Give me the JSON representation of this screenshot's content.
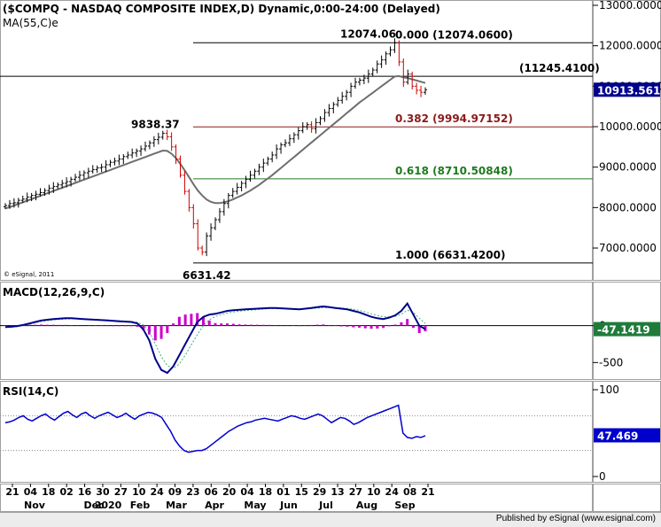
{
  "chart_data": [
    {
      "type": "candlestick",
      "title": "($COMPQ - NASDAQ COMPOSITE INDEX,D) Dynamic,0:00-24:00 (Delayed)",
      "indicator_label": "MA(55,C)e",
      "copyright": "© eSignal, 2011",
      "ylim": [
        6300,
        13000
      ],
      "y_ticks": [
        "13000.0000",
        "12000.0000",
        "11000.0000",
        "10000.0000",
        "9000.0000",
        "8000.0000",
        "7000.0000"
      ],
      "last_price": "10913.5618",
      "fibonacci": [
        {
          "level": "0.000",
          "value": "(12074.0600)",
          "price": 12074.06,
          "color": "#000000"
        },
        {
          "level": "0.382",
          "value": "(9994.97152)",
          "price": 9994.97,
          "color": "#8b1a1a"
        },
        {
          "level": "0.618",
          "value": "(8710.50848)",
          "price": 8710.51,
          "color": "#1f7a1f"
        },
        {
          "level": "1.000",
          "value": "(6631.4200)",
          "price": 6631.42,
          "color": "#000000"
        }
      ],
      "horizontal_line": {
        "label": "(11245.4100)",
        "price": 11245.41
      },
      "annotations": [
        {
          "text": "12074.06",
          "price": 12074.06
        },
        {
          "text": "9838.37",
          "price": 9838.37
        },
        {
          "text": "6631.42",
          "price": 6631.42
        }
      ],
      "closes": [
        8050,
        8100,
        8120,
        8180,
        8210,
        8260,
        8300,
        8330,
        8370,
        8420,
        8480,
        8520,
        8560,
        8600,
        8640,
        8700,
        8750,
        8800,
        8860,
        8900,
        8940,
        8980,
        9000,
        9060,
        9120,
        9150,
        9200,
        9260,
        9300,
        9350,
        9400,
        9450,
        9520,
        9600,
        9680,
        9740,
        9838,
        9750,
        9500,
        9200,
        8800,
        8400,
        8000,
        7600,
        7000,
        6900,
        7300,
        7500,
        7700,
        7900,
        8100,
        8300,
        8400,
        8500,
        8600,
        8700,
        8800,
        8900,
        9000,
        9100,
        9200,
        9300,
        9450,
        9550,
        9600,
        9700,
        9800,
        9900,
        10000,
        10050,
        9950,
        10100,
        10200,
        10350,
        10450,
        10550,
        10650,
        10750,
        10850,
        11000,
        11100,
        11150,
        11200,
        11300,
        11400,
        11550,
        11650,
        11800,
        11900,
        12074,
        11600,
        11100,
        11300,
        11000,
        10900,
        10850,
        10913
      ],
      "ma55": [
        7980,
        8010,
        8050,
        8090,
        8130,
        8170,
        8210,
        8250,
        8290,
        8330,
        8370,
        8410,
        8450,
        8490,
        8530,
        8570,
        8610,
        8650,
        8690,
        8730,
        8770,
        8810,
        8850,
        8890,
        8930,
        8970,
        9010,
        9050,
        9090,
        9130,
        9170,
        9210,
        9250,
        9290,
        9330,
        9370,
        9410,
        9400,
        9330,
        9220,
        9080,
        8920,
        8750,
        8580,
        8420,
        8300,
        8200,
        8140,
        8110,
        8110,
        8130,
        8160,
        8200,
        8250,
        8300,
        8360,
        8420,
        8490,
        8560,
        8640,
        8720,
        8800,
        8890,
        8980,
        9070,
        9160,
        9250,
        9340,
        9430,
        9520,
        9610,
        9700,
        9790,
        9880,
        9970,
        10060,
        10150,
        10240,
        10330,
        10420,
        10510,
        10600,
        10680,
        10760,
        10840,
        10920,
        11000,
        11080,
        11160,
        11240,
        11250,
        11220,
        11200,
        11170,
        11140,
        11110,
        11080
      ]
    },
    {
      "type": "line",
      "title": "MACD(12,26,9,C)",
      "ylim": [
        -700,
        500
      ],
      "y_ticks": [
        "0",
        "-500"
      ],
      "last_value": "-47.1419",
      "macd": [
        -20,
        -15,
        -5,
        10,
        30,
        50,
        70,
        80,
        90,
        95,
        100,
        100,
        95,
        90,
        85,
        80,
        75,
        70,
        65,
        60,
        55,
        50,
        30,
        -50,
        -200,
        -450,
        -600,
        -640,
        -550,
        -400,
        -250,
        -100,
        50,
        120,
        150,
        160,
        180,
        200,
        210,
        215,
        220,
        225,
        230,
        235,
        240,
        240,
        235,
        230,
        225,
        220,
        230,
        240,
        250,
        260,
        250,
        240,
        230,
        220,
        200,
        180,
        150,
        120,
        100,
        90,
        110,
        140,
        200,
        300,
        150,
        0,
        -47
      ],
      "signal": [
        -25,
        -20,
        -12,
        0,
        18,
        38,
        55,
        68,
        78,
        85,
        90,
        92,
        92,
        90,
        87,
        84,
        80,
        76,
        72,
        67,
        62,
        57,
        45,
        10,
        -80,
        -250,
        -420,
        -540,
        -580,
        -520,
        -400,
        -260,
        -120,
        0,
        80,
        125,
        150,
        170,
        185,
        198,
        205,
        212,
        218,
        224,
        230,
        233,
        233,
        232,
        229,
        226,
        227,
        231,
        237,
        244,
        246,
        244,
        240,
        234,
        222,
        207,
        186,
        162,
        139,
        121,
        118,
        126,
        155,
        210,
        180,
        100,
        30
      ],
      "histogram": [
        5,
        5,
        7,
        10,
        12,
        12,
        15,
        12,
        12,
        10,
        10,
        8,
        3,
        0,
        -2,
        -4,
        -5,
        -6,
        -7,
        -7,
        -7,
        -7,
        -15,
        -60,
        -120,
        -200,
        -180,
        -100,
        30,
        120,
        150,
        160,
        170,
        120,
        70,
        35,
        30,
        30,
        25,
        17,
        15,
        13,
        12,
        11,
        10,
        7,
        2,
        -2,
        -4,
        -6,
        3,
        9,
        13,
        16,
        4,
        -4,
        -10,
        -14,
        -22,
        -27,
        -36,
        -42,
        -39,
        -31,
        -8,
        14,
        45,
        90,
        -30,
        -100,
        -77
      ]
    },
    {
      "type": "line",
      "title": "RSI(14,C)",
      "ylim": [
        0,
        100
      ],
      "y_ticks": [
        "100",
        "0"
      ],
      "last_value": "47.469",
      "rsi": [
        62,
        63,
        65,
        68,
        70,
        66,
        64,
        67,
        70,
        72,
        68,
        65,
        69,
        73,
        75,
        71,
        68,
        72,
        74,
        70,
        67,
        70,
        72,
        74,
        71,
        68,
        70,
        73,
        69,
        66,
        70,
        72,
        74,
        73,
        71,
        68,
        60,
        52,
        42,
        35,
        30,
        28,
        29,
        30,
        30,
        32,
        36,
        40,
        44,
        48,
        52,
        55,
        58,
        60,
        62,
        63,
        65,
        66,
        67,
        66,
        65,
        64,
        66,
        68,
        70,
        69,
        67,
        66,
        68,
        70,
        72,
        70,
        66,
        62,
        65,
        68,
        67,
        64,
        60,
        62,
        65,
        68,
        70,
        72,
        74,
        76,
        78,
        80,
        82,
        50,
        45,
        44,
        46,
        45,
        47
      ]
    }
  ],
  "x_axis": {
    "day_labels": [
      "21",
      "04",
      "18",
      "02",
      "16",
      "30",
      "27",
      "10",
      "24",
      "09",
      "23",
      "06",
      "20",
      "04",
      "18",
      "01",
      "15",
      "29",
      "13",
      "27",
      "10",
      "24",
      "08",
      "21"
    ],
    "month_labels": [
      "Nov",
      "Dec",
      "2020",
      "Feb",
      "Mar",
      "Apr",
      "May",
      "Jun",
      "Jul",
      "Aug",
      "Sep"
    ]
  },
  "footer": "Published by eSignal (www.esignal.com)"
}
